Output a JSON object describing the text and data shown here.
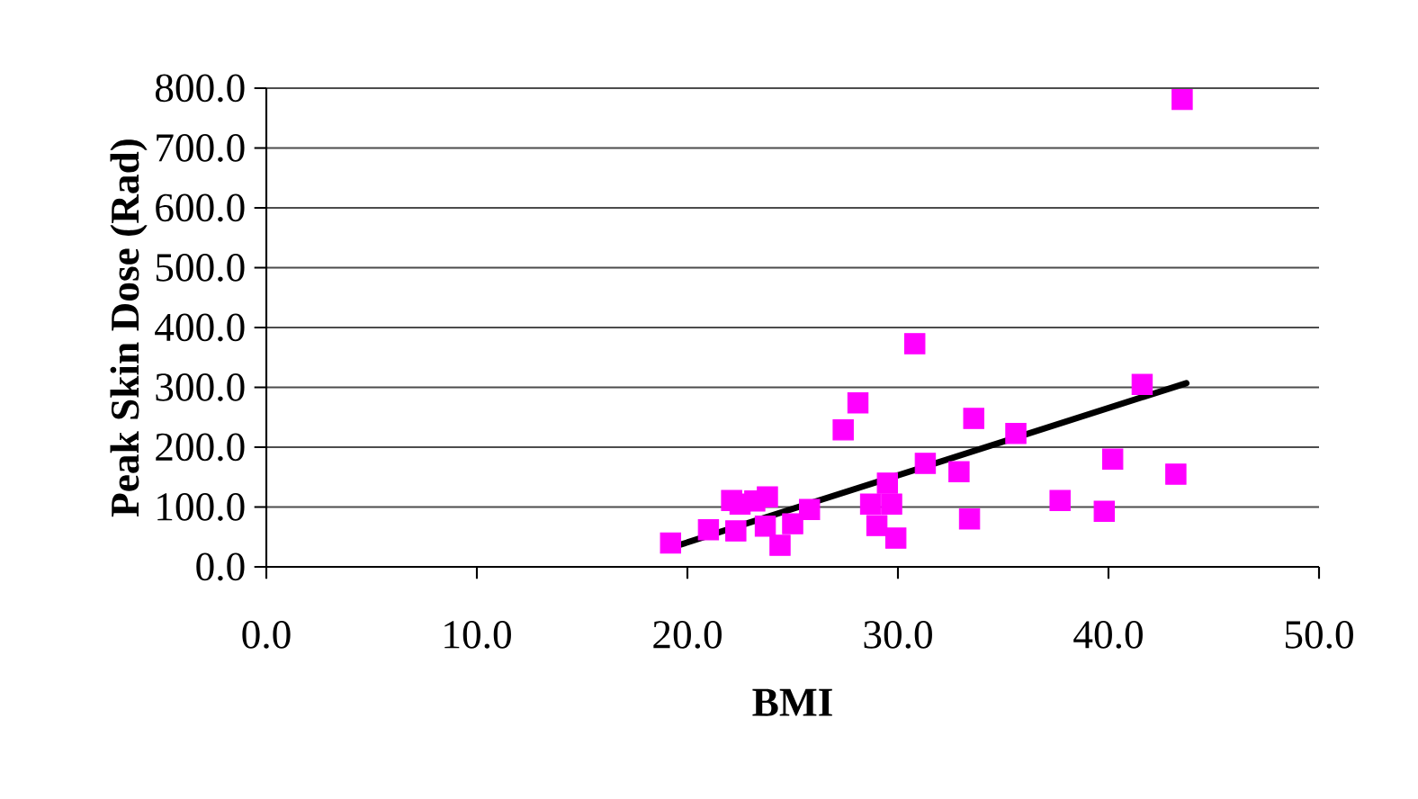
{
  "chart_data": {
    "type": "scatter",
    "xlabel": "BMI",
    "ylabel": "Peak Skin Dose (Rad)",
    "xlim": [
      0,
      50
    ],
    "ylim": [
      0,
      800
    ],
    "xticks": [
      {
        "value": 0,
        "label": "0.0"
      },
      {
        "value": 10,
        "label": "10.0"
      },
      {
        "value": 20,
        "label": "20.0"
      },
      {
        "value": 30,
        "label": "30.0"
      },
      {
        "value": 40,
        "label": "40.0"
      },
      {
        "value": 50,
        "label": "50.0"
      }
    ],
    "yticks": [
      {
        "value": 0,
        "label": "0.0"
      },
      {
        "value": 100,
        "label": "100.0"
      },
      {
        "value": 200,
        "label": "200.0"
      },
      {
        "value": 300,
        "label": "300.0"
      },
      {
        "value": 400,
        "label": "400.0"
      },
      {
        "value": 500,
        "label": "500.0"
      },
      {
        "value": 600,
        "label": "600.0"
      },
      {
        "value": 700,
        "label": "700.0"
      },
      {
        "value": 800,
        "label": "800.0"
      }
    ],
    "grid": "y",
    "series": [
      {
        "color": "#ff00ff",
        "marker": "square",
        "x": [
          19.2,
          21.0,
          22.3,
          22.1,
          22.5,
          23.2,
          23.8,
          23.7,
          24.4,
          25.0,
          25.8,
          27.4,
          28.1,
          28.7,
          29.0,
          29.5,
          29.7,
          29.9,
          30.8,
          31.3,
          32.9,
          33.4,
          33.6,
          35.6,
          37.7,
          39.8,
          40.2,
          41.6,
          43.2,
          43.5
        ],
        "values": [
          40,
          62,
          60,
          111,
          105,
          110,
          117,
          68,
          36,
          72,
          96,
          229,
          274,
          105,
          69,
          140,
          105,
          48,
          373,
          173,
          159,
          80,
          248,
          223,
          111,
          93,
          180,
          305,
          155,
          781
        ]
      },
      {
        "type": "line",
        "color": "#000000",
        "marker": "none",
        "line_style": "solid",
        "x": [
          19.3,
          43.7
        ],
        "values": [
          33,
          307
        ]
      }
    ]
  }
}
